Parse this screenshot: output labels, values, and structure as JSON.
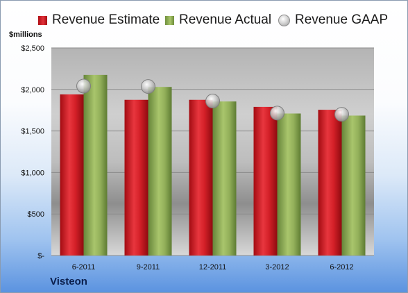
{
  "legend": {
    "estimate": "Revenue Estimate",
    "actual": "Revenue Actual",
    "gaap": "Revenue GAAP"
  },
  "company": "Visteon",
  "colors": {
    "estimate": "#d42028",
    "actual": "#93b05a",
    "gaap": "#c8c8c8"
  },
  "chart_data": {
    "type": "bar",
    "title": "",
    "ylabel": "$millions",
    "xlabel": "",
    "categories": [
      "6-2011",
      "9-2011",
      "12-2011",
      "3-2012",
      "6-2012"
    ],
    "ylim": [
      0,
      2500
    ],
    "yticks": [
      0,
      500,
      1000,
      1500,
      2000,
      2500
    ],
    "ytick_labels": [
      "$-",
      "$500",
      "$1,000",
      "$1,500",
      "$2,000",
      "$2,500"
    ],
    "grid": true,
    "legend_position": "top",
    "series": [
      {
        "name": "Revenue Estimate",
        "kind": "bar",
        "values": [
          1940,
          1875,
          1875,
          1790,
          1755
        ]
      },
      {
        "name": "Revenue Actual",
        "kind": "bar",
        "values": [
          2175,
          2030,
          1855,
          1710,
          1685
        ]
      },
      {
        "name": "Revenue GAAP",
        "kind": "marker",
        "values": [
          2040,
          2035,
          1860,
          1715,
          1700
        ]
      }
    ]
  }
}
